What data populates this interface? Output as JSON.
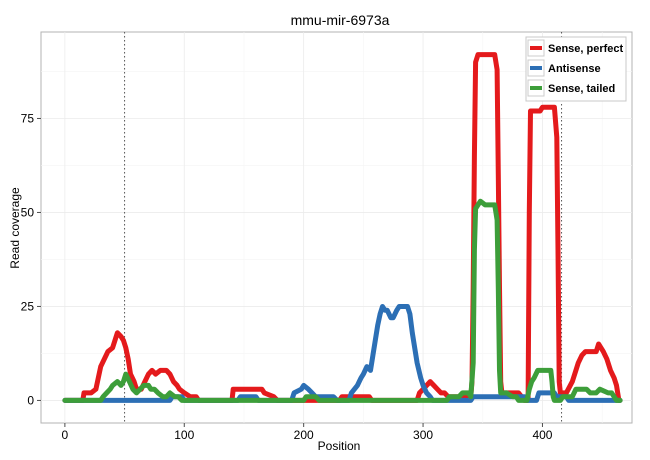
{
  "chart_data": {
    "type": "line",
    "title": "mmu-mir-6973a",
    "xlabel": "Position",
    "ylabel": "Read coverage",
    "xlim": [
      -20,
      475
    ],
    "ylim": [
      -6,
      98
    ],
    "x_ticks": [
      0,
      100,
      200,
      300,
      400
    ],
    "y_ticks": [
      0,
      25,
      50,
      75
    ],
    "grid": true,
    "legend_position": "top-right",
    "vlines": [
      50,
      416
    ],
    "series": [
      {
        "name": "Sense, perfect",
        "color": "#e41a1c",
        "points": [
          [
            0,
            0
          ],
          [
            15,
            0
          ],
          [
            16,
            2
          ],
          [
            22,
            2
          ],
          [
            26,
            3
          ],
          [
            28,
            6
          ],
          [
            30,
            9
          ],
          [
            33,
            11
          ],
          [
            36,
            13
          ],
          [
            40,
            14
          ],
          [
            42,
            16
          ],
          [
            44,
            18
          ],
          [
            47,
            17
          ],
          [
            49,
            16
          ],
          [
            51,
            14
          ],
          [
            53,
            11
          ],
          [
            55,
            7
          ],
          [
            58,
            5
          ],
          [
            60,
            3
          ],
          [
            64,
            3
          ],
          [
            67,
            5
          ],
          [
            70,
            7
          ],
          [
            73,
            8
          ],
          [
            76,
            7
          ],
          [
            80,
            8
          ],
          [
            85,
            8
          ],
          [
            88,
            7
          ],
          [
            91,
            5
          ],
          [
            94,
            4
          ],
          [
            96,
            3
          ],
          [
            100,
            2
          ],
          [
            105,
            1
          ],
          [
            110,
            1
          ],
          [
            112,
            0
          ],
          [
            140,
            0
          ],
          [
            141,
            3
          ],
          [
            165,
            3
          ],
          [
            167,
            2
          ],
          [
            175,
            1
          ],
          [
            178,
            0
          ],
          [
            230,
            0
          ],
          [
            232,
            1
          ],
          [
            255,
            1
          ],
          [
            257,
            0
          ],
          [
            295,
            0
          ],
          [
            297,
            2
          ],
          [
            300,
            3
          ],
          [
            303,
            4
          ],
          [
            306,
            5
          ],
          [
            309,
            4
          ],
          [
            312,
            3
          ],
          [
            315,
            2
          ],
          [
            318,
            2
          ],
          [
            321,
            1
          ],
          [
            325,
            1
          ],
          [
            335,
            1
          ],
          [
            340,
            1
          ],
          [
            341,
            5
          ],
          [
            342,
            30
          ],
          [
            343,
            65
          ],
          [
            344,
            90
          ],
          [
            346,
            92
          ],
          [
            360,
            92
          ],
          [
            362,
            88
          ],
          [
            363,
            60
          ],
          [
            364,
            30
          ],
          [
            365,
            5
          ],
          [
            366,
            2
          ],
          [
            380,
            2
          ],
          [
            385,
            0
          ],
          [
            388,
            0
          ],
          [
            389,
            50
          ],
          [
            390,
            77
          ],
          [
            398,
            77
          ],
          [
            400,
            78
          ],
          [
            410,
            78
          ],
          [
            412,
            70
          ],
          [
            413,
            40
          ],
          [
            414,
            5
          ],
          [
            415,
            2
          ],
          [
            420,
            2
          ],
          [
            425,
            5
          ],
          [
            428,
            8
          ],
          [
            430,
            10
          ],
          [
            433,
            12
          ],
          [
            436,
            13
          ],
          [
            445,
            13
          ],
          [
            447,
            15
          ],
          [
            449,
            14
          ],
          [
            451,
            13
          ],
          [
            454,
            11
          ],
          [
            457,
            8
          ],
          [
            460,
            6
          ],
          [
            462,
            4
          ],
          [
            463,
            2
          ],
          [
            464,
            0
          ],
          [
            465,
            0
          ]
        ]
      },
      {
        "name": "Antisense",
        "color": "#2c6fb5",
        "points": [
          [
            0,
            0
          ],
          [
            88,
            0
          ],
          [
            90,
            1
          ],
          [
            98,
            1
          ],
          [
            100,
            0
          ],
          [
            145,
            0
          ],
          [
            147,
            1
          ],
          [
            160,
            1
          ],
          [
            162,
            0
          ],
          [
            190,
            0
          ],
          [
            192,
            2
          ],
          [
            198,
            3
          ],
          [
            200,
            4
          ],
          [
            204,
            3
          ],
          [
            207,
            2
          ],
          [
            210,
            1
          ],
          [
            225,
            1
          ],
          [
            228,
            0
          ],
          [
            238,
            0
          ],
          [
            240,
            2
          ],
          [
            245,
            4
          ],
          [
            248,
            6
          ],
          [
            250,
            7
          ],
          [
            253,
            9
          ],
          [
            256,
            8
          ],
          [
            258,
            12
          ],
          [
            260,
            16
          ],
          [
            262,
            20
          ],
          [
            264,
            23
          ],
          [
            266,
            25
          ],
          [
            268,
            24
          ],
          [
            270,
            24
          ],
          [
            273,
            22
          ],
          [
            275,
            22
          ],
          [
            278,
            24
          ],
          [
            280,
            25
          ],
          [
            287,
            25
          ],
          [
            289,
            23
          ],
          [
            291,
            18
          ],
          [
            293,
            14
          ],
          [
            295,
            10
          ],
          [
            298,
            6
          ],
          [
            300,
            4
          ],
          [
            303,
            2
          ],
          [
            306,
            1
          ],
          [
            308,
            0
          ],
          [
            340,
            0
          ],
          [
            342,
            1
          ],
          [
            385,
            1
          ],
          [
            387,
            0
          ],
          [
            395,
            0
          ],
          [
            397,
            2
          ],
          [
            410,
            2
          ],
          [
            412,
            1
          ],
          [
            420,
            1
          ],
          [
            422,
            0
          ],
          [
            465,
            0
          ]
        ]
      },
      {
        "name": "Sense, tailed",
        "color": "#3d9e3a",
        "points": [
          [
            0,
            0
          ],
          [
            30,
            0
          ],
          [
            32,
            1
          ],
          [
            35,
            2
          ],
          [
            38,
            3
          ],
          [
            40,
            4
          ],
          [
            44,
            5
          ],
          [
            47,
            4
          ],
          [
            49,
            5
          ],
          [
            51,
            7
          ],
          [
            54,
            5
          ],
          [
            57,
            3
          ],
          [
            60,
            2
          ],
          [
            63,
            3
          ],
          [
            66,
            4
          ],
          [
            70,
            4
          ],
          [
            72,
            3
          ],
          [
            75,
            3
          ],
          [
            78,
            2
          ],
          [
            82,
            1
          ],
          [
            85,
            1
          ],
          [
            88,
            2
          ],
          [
            92,
            1
          ],
          [
            95,
            1
          ],
          [
            98,
            0
          ],
          [
            200,
            0
          ],
          [
            202,
            1
          ],
          [
            205,
            1
          ],
          [
            210,
            1
          ],
          [
            213,
            0
          ],
          [
            320,
            0
          ],
          [
            322,
            1
          ],
          [
            330,
            1
          ],
          [
            333,
            2
          ],
          [
            338,
            2
          ],
          [
            340,
            1
          ],
          [
            342,
            10
          ],
          [
            343,
            40
          ],
          [
            344,
            51
          ],
          [
            348,
            53
          ],
          [
            352,
            52
          ],
          [
            360,
            52
          ],
          [
            362,
            48
          ],
          [
            363,
            30
          ],
          [
            364,
            8
          ],
          [
            365,
            2
          ],
          [
            370,
            2
          ],
          [
            375,
            1
          ],
          [
            378,
            1
          ],
          [
            380,
            0
          ],
          [
            387,
            0
          ],
          [
            389,
            3
          ],
          [
            391,
            5
          ],
          [
            393,
            6
          ],
          [
            396,
            8
          ],
          [
            398,
            8
          ],
          [
            405,
            8
          ],
          [
            407,
            8
          ],
          [
            408,
            5
          ],
          [
            409,
            1
          ],
          [
            410,
            0
          ],
          [
            415,
            0
          ],
          [
            417,
            1
          ],
          [
            425,
            1
          ],
          [
            428,
            3
          ],
          [
            437,
            3
          ],
          [
            440,
            2
          ],
          [
            445,
            2
          ],
          [
            448,
            3
          ],
          [
            455,
            2
          ],
          [
            458,
            2
          ],
          [
            460,
            1
          ],
          [
            462,
            0
          ],
          [
            465,
            0
          ]
        ]
      }
    ]
  }
}
